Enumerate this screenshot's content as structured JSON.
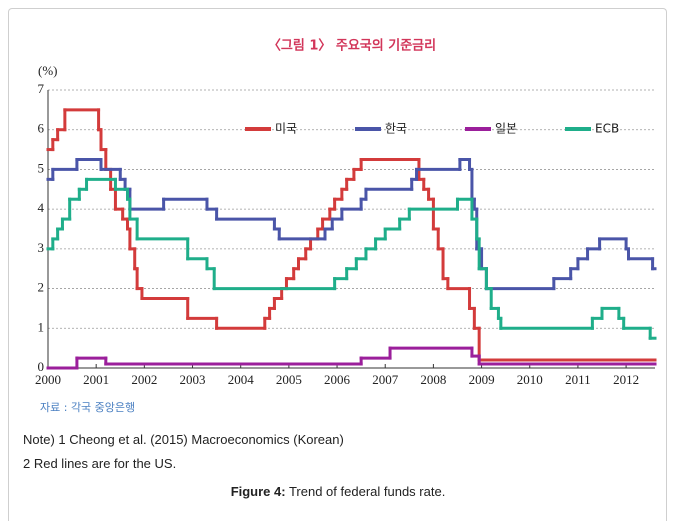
{
  "chart_data": {
    "type": "step-line",
    "title": "〈그림 1〉 주요국의 기준금리",
    "y_unit": "(%)",
    "source": "자료 : 각국 중앙은행",
    "xlim": [
      2000,
      2012.6
    ],
    "ylim": [
      0,
      7
    ],
    "xticks": [
      2000,
      2001,
      2002,
      2003,
      2004,
      2005,
      2006,
      2007,
      2008,
      2009,
      2010,
      2011,
      2012
    ],
    "yticks": [
      0,
      1,
      2,
      3,
      4,
      5,
      6,
      7
    ],
    "grid": true,
    "legend": "top",
    "series": [
      {
        "name": "미국",
        "color": "#d33b3b",
        "x": [
          2000.0,
          2000.1,
          2000.2,
          2000.35,
          2001.05,
          2001.1,
          2001.2,
          2001.3,
          2001.4,
          2001.55,
          2001.65,
          2001.7,
          2001.8,
          2001.85,
          2001.95,
          2002.9,
          2003.5,
          2004.5,
          2004.6,
          2004.7,
          2004.85,
          2004.95,
          2005.1,
          2005.2,
          2005.35,
          2005.45,
          2005.6,
          2005.7,
          2005.85,
          2005.95,
          2006.1,
          2006.2,
          2006.35,
          2006.5,
          2007.7,
          2007.8,
          2007.9,
          2008.0,
          2008.1,
          2008.2,
          2008.3,
          2008.75,
          2008.85,
          2008.95
        ],
        "values": [
          5.5,
          5.75,
          6.0,
          6.5,
          6.0,
          5.5,
          5.0,
          4.5,
          4.0,
          3.75,
          3.5,
          3.0,
          2.5,
          2.0,
          1.75,
          1.25,
          1.0,
          1.25,
          1.5,
          1.75,
          2.0,
          2.25,
          2.5,
          2.75,
          3.0,
          3.25,
          3.5,
          3.75,
          4.0,
          4.25,
          4.5,
          4.75,
          5.0,
          5.25,
          4.75,
          4.5,
          4.25,
          3.5,
          3.0,
          2.25,
          2.0,
          1.5,
          1.0,
          0.2
        ]
      },
      {
        "name": "한국",
        "color": "#4a55a8",
        "x": [
          2000.0,
          2000.1,
          2000.6,
          2001.1,
          2001.5,
          2001.6,
          2001.7,
          2002.4,
          2003.3,
          2003.5,
          2004.7,
          2004.8,
          2005.75,
          2005.9,
          2006.1,
          2006.5,
          2006.6,
          2007.55,
          2007.65,
          2008.55,
          2008.75,
          2008.8,
          2008.85,
          2008.9,
          2009.0,
          2009.1,
          2010.5,
          2010.85,
          2011.0,
          2011.2,
          2011.45,
          2012.0,
          2012.05,
          2012.55
        ],
        "values": [
          4.75,
          5.0,
          5.25,
          5.0,
          4.75,
          4.5,
          4.0,
          4.25,
          4.0,
          3.75,
          3.5,
          3.25,
          3.5,
          3.75,
          4.0,
          4.25,
          4.5,
          4.75,
          5.0,
          5.25,
          5.0,
          4.25,
          4.0,
          3.0,
          2.5,
          2.0,
          2.25,
          2.5,
          2.75,
          3.0,
          3.25,
          3.0,
          2.75,
          2.5
        ]
      },
      {
        "name": "일본",
        "color": "#9b1f9b",
        "x": [
          2000.0,
          2000.6,
          2001.2,
          2006.5,
          2007.1,
          2008.8,
          2008.95
        ],
        "values": [
          0.0,
          0.25,
          0.1,
          0.25,
          0.5,
          0.3,
          0.1
        ]
      },
      {
        "name": "ECB",
        "color": "#1fae8a",
        "x": [
          2000.0,
          2000.1,
          2000.2,
          2000.3,
          2000.45,
          2000.65,
          2000.8,
          2001.4,
          2001.65,
          2001.7,
          2001.85,
          2002.9,
          2003.3,
          2003.45,
          2005.95,
          2006.2,
          2006.4,
          2006.6,
          2006.8,
          2007.0,
          2007.3,
          2007.5,
          2008.5,
          2008.8,
          2008.9,
          2008.95,
          2009.1,
          2009.2,
          2009.35,
          2009.4,
          2011.3,
          2011.5,
          2011.85,
          2011.95,
          2012.5
        ],
        "values": [
          3.0,
          3.25,
          3.5,
          3.75,
          4.25,
          4.5,
          4.75,
          4.5,
          4.25,
          3.75,
          3.25,
          2.75,
          2.5,
          2.0,
          2.25,
          2.5,
          2.75,
          3.0,
          3.25,
          3.5,
          3.75,
          4.0,
          4.25,
          3.75,
          3.25,
          2.5,
          2.0,
          1.5,
          1.25,
          1.0,
          1.25,
          1.5,
          1.25,
          1.0,
          0.75
        ]
      }
    ]
  },
  "notes": [
    "Note) 1 Cheong et al. (2015) Macroeconomics (Korean)",
    "2 Red lines are for the US."
  ],
  "caption": {
    "label": "Figure 4:",
    "text": " Trend of federal funds rate."
  }
}
